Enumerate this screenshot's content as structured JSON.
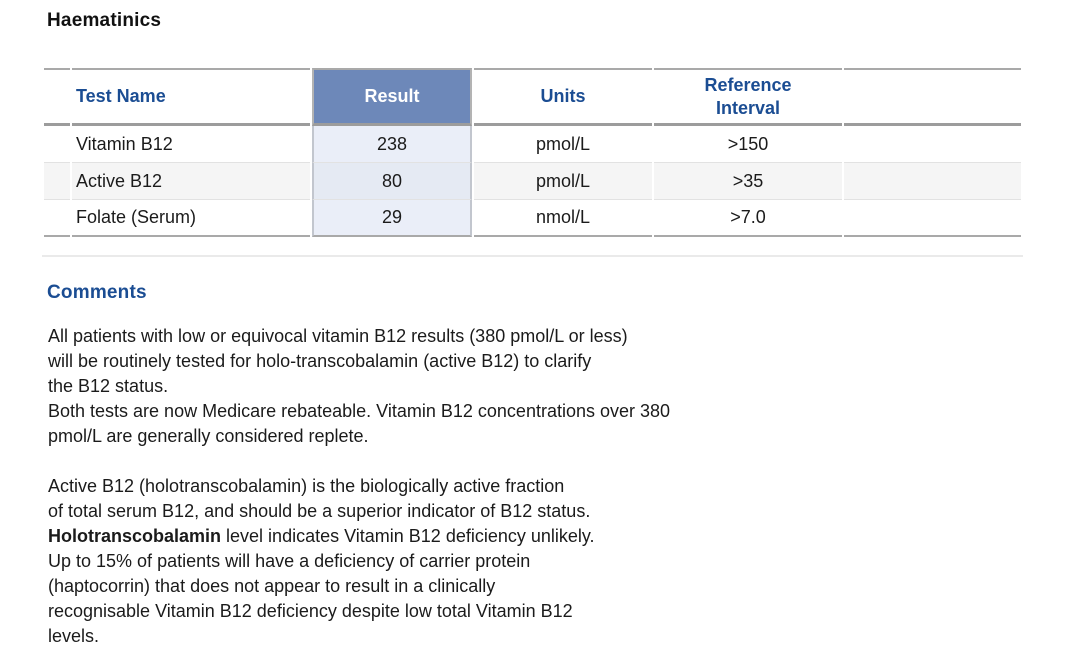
{
  "title": "Haematinics",
  "table": {
    "headers": {
      "test": "Test Name",
      "result": "Result",
      "units": "Units",
      "reference": "Reference Interval"
    },
    "rows": [
      {
        "test": "Vitamin B12",
        "result": "238",
        "units": "pmol/L",
        "reference": ">150"
      },
      {
        "test": "Active B12",
        "result": "80",
        "units": "pmol/L",
        "reference": ">35"
      },
      {
        "test": "Folate (Serum)",
        "result": "29",
        "units": "nmol/L",
        "reference": ">7.0"
      }
    ]
  },
  "comments": {
    "heading": "Comments",
    "paragraph1": "All patients with low or equivocal vitamin B12 results (380 pmol/L or less)\nwill be routinely tested for holo-transcobalamin (active B12) to clarify\nthe B12 status.\nBoth tests are now Medicare rebateable. Vitamin B12 concentrations over 380\npmol/L are generally considered replete.",
    "paragraph2_lead": "Active B12 (holotranscobalamin) is the biologically active fraction\nof total serum B12, and should be a superior indicator of B12 status.\n",
    "paragraph2_bold": "Holotranscobalamin",
    "paragraph2_rest": " level indicates Vitamin B12 deficiency unlikely.\nUp to 15% of patients will have a deficiency of carrier protein\n(haptocorrin) that does not appear to result in a clinically\nrecognisable Vitamin B12 deficiency despite low total Vitamin B12\nlevels."
  },
  "colors": {
    "heading_blue": "#1b4d93",
    "result_header_bg": "#6d88b9",
    "result_cell_bg": "#eaeef8",
    "zebra_row_bg": "#f5f5f5",
    "border_grey": "#a9a9a9",
    "row_separator": "#e2e2e2"
  }
}
